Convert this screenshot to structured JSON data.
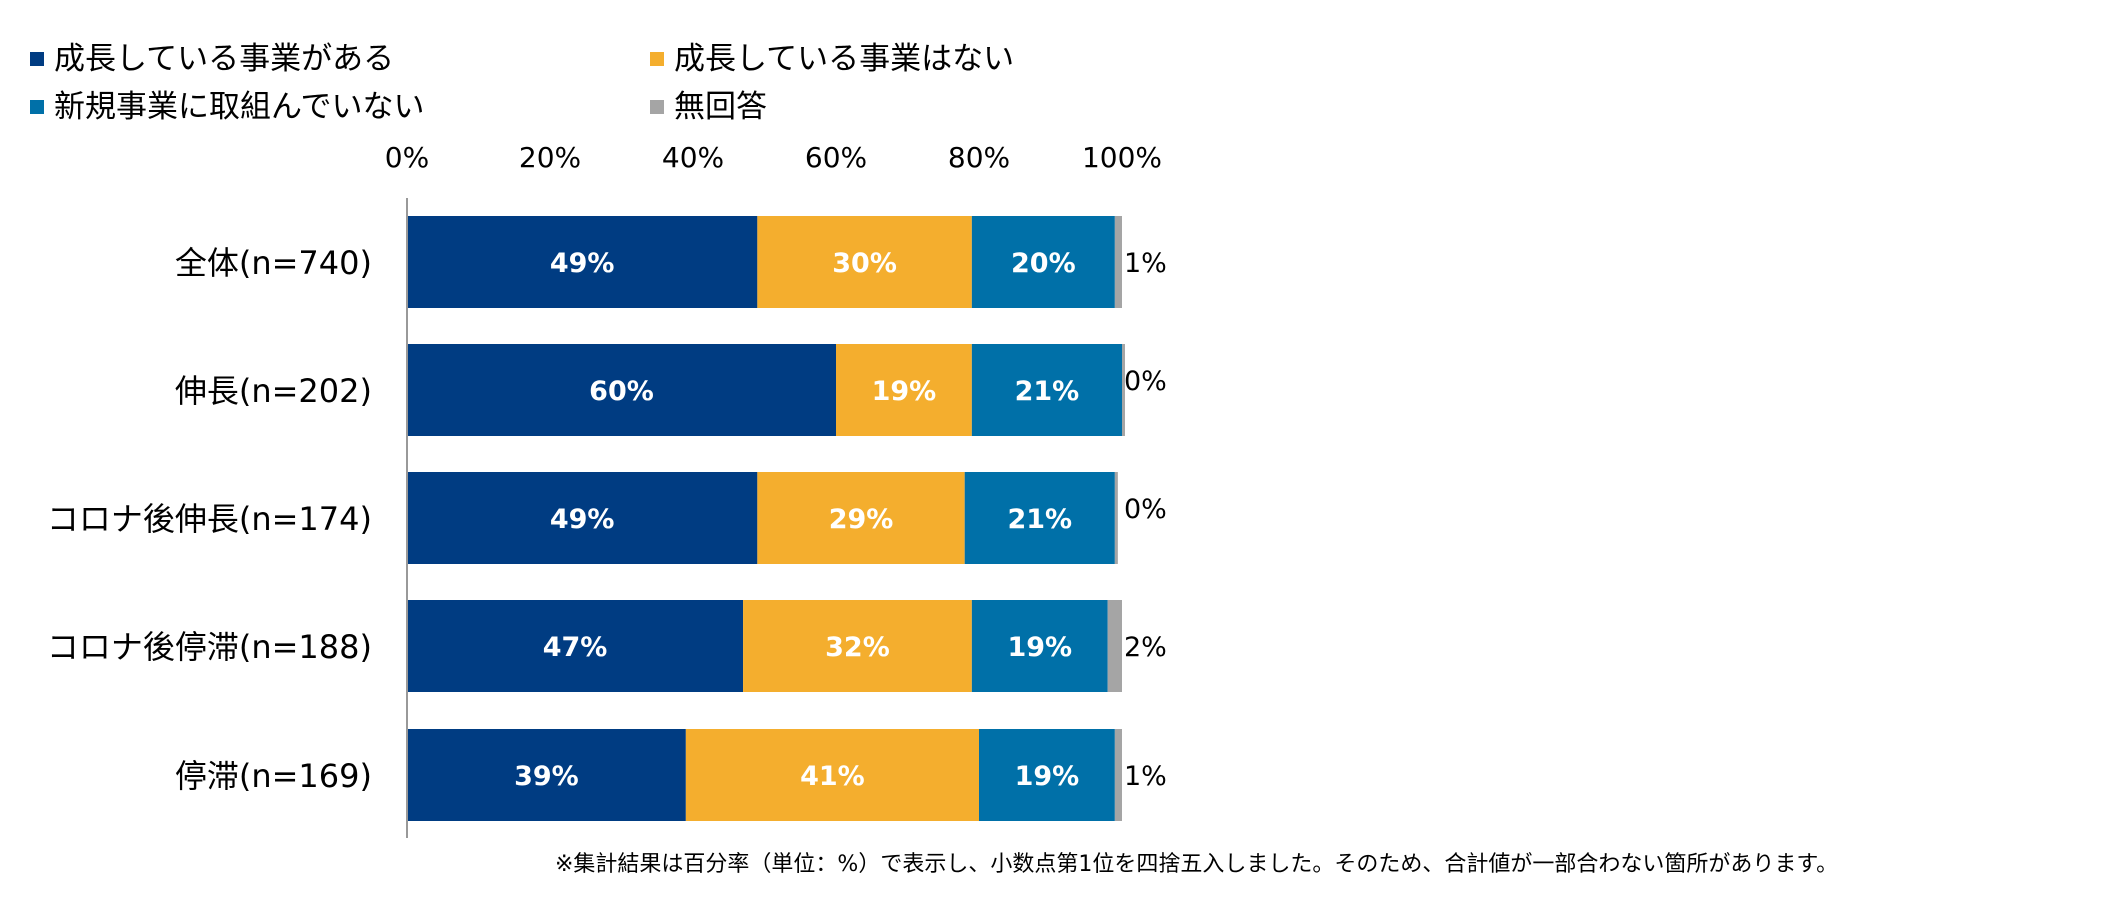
{
  "chart_data": {
    "type": "bar",
    "orientation": "horizontal",
    "stacked": true,
    "percent_scale": true,
    "categories": [
      "全体(n=740)",
      "伸長(n=202)",
      "コロナ後伸長(n=174)",
      "コロナ後停滞(n=188)",
      "停滞(n=169)"
    ],
    "series": [
      {
        "name": "成長している事業がある",
        "color": "#003c82",
        "values": [
          49,
          60,
          49,
          47,
          39
        ],
        "labels": [
          "49%",
          "60%",
          "49%",
          "47%",
          "39%"
        ]
      },
      {
        "name": "成長している事業はない",
        "color": "#f4ae2e",
        "values": [
          30,
          19,
          29,
          32,
          41
        ],
        "labels": [
          "30%",
          "19%",
          "29%",
          "32%",
          "41%"
        ]
      },
      {
        "name": "新規事業に取組んでいない",
        "color": "#0070a8",
        "values": [
          20,
          21,
          21,
          19,
          19
        ],
        "labels": [
          "20%",
          "21%",
          "21%",
          "19%",
          "19%"
        ]
      },
      {
        "name": "無回答",
        "color": "#a5a5a5",
        "values": [
          1,
          0,
          0,
          2,
          1
        ],
        "labels": [
          "1%",
          "0%",
          "0%",
          "2%",
          "1%"
        ]
      }
    ],
    "xticks": [
      "0%",
      "20%",
      "40%",
      "60%",
      "80%",
      "100%"
    ],
    "xlim": [
      0,
      100
    ],
    "axis_position": "top",
    "legend_position": "top-left",
    "grid": false,
    "note": "※集計結果は百分率（単位：%）で表示し、小数点第1位を四捨五入しました。そのため、合計値が一部合わない箇所があります。"
  }
}
